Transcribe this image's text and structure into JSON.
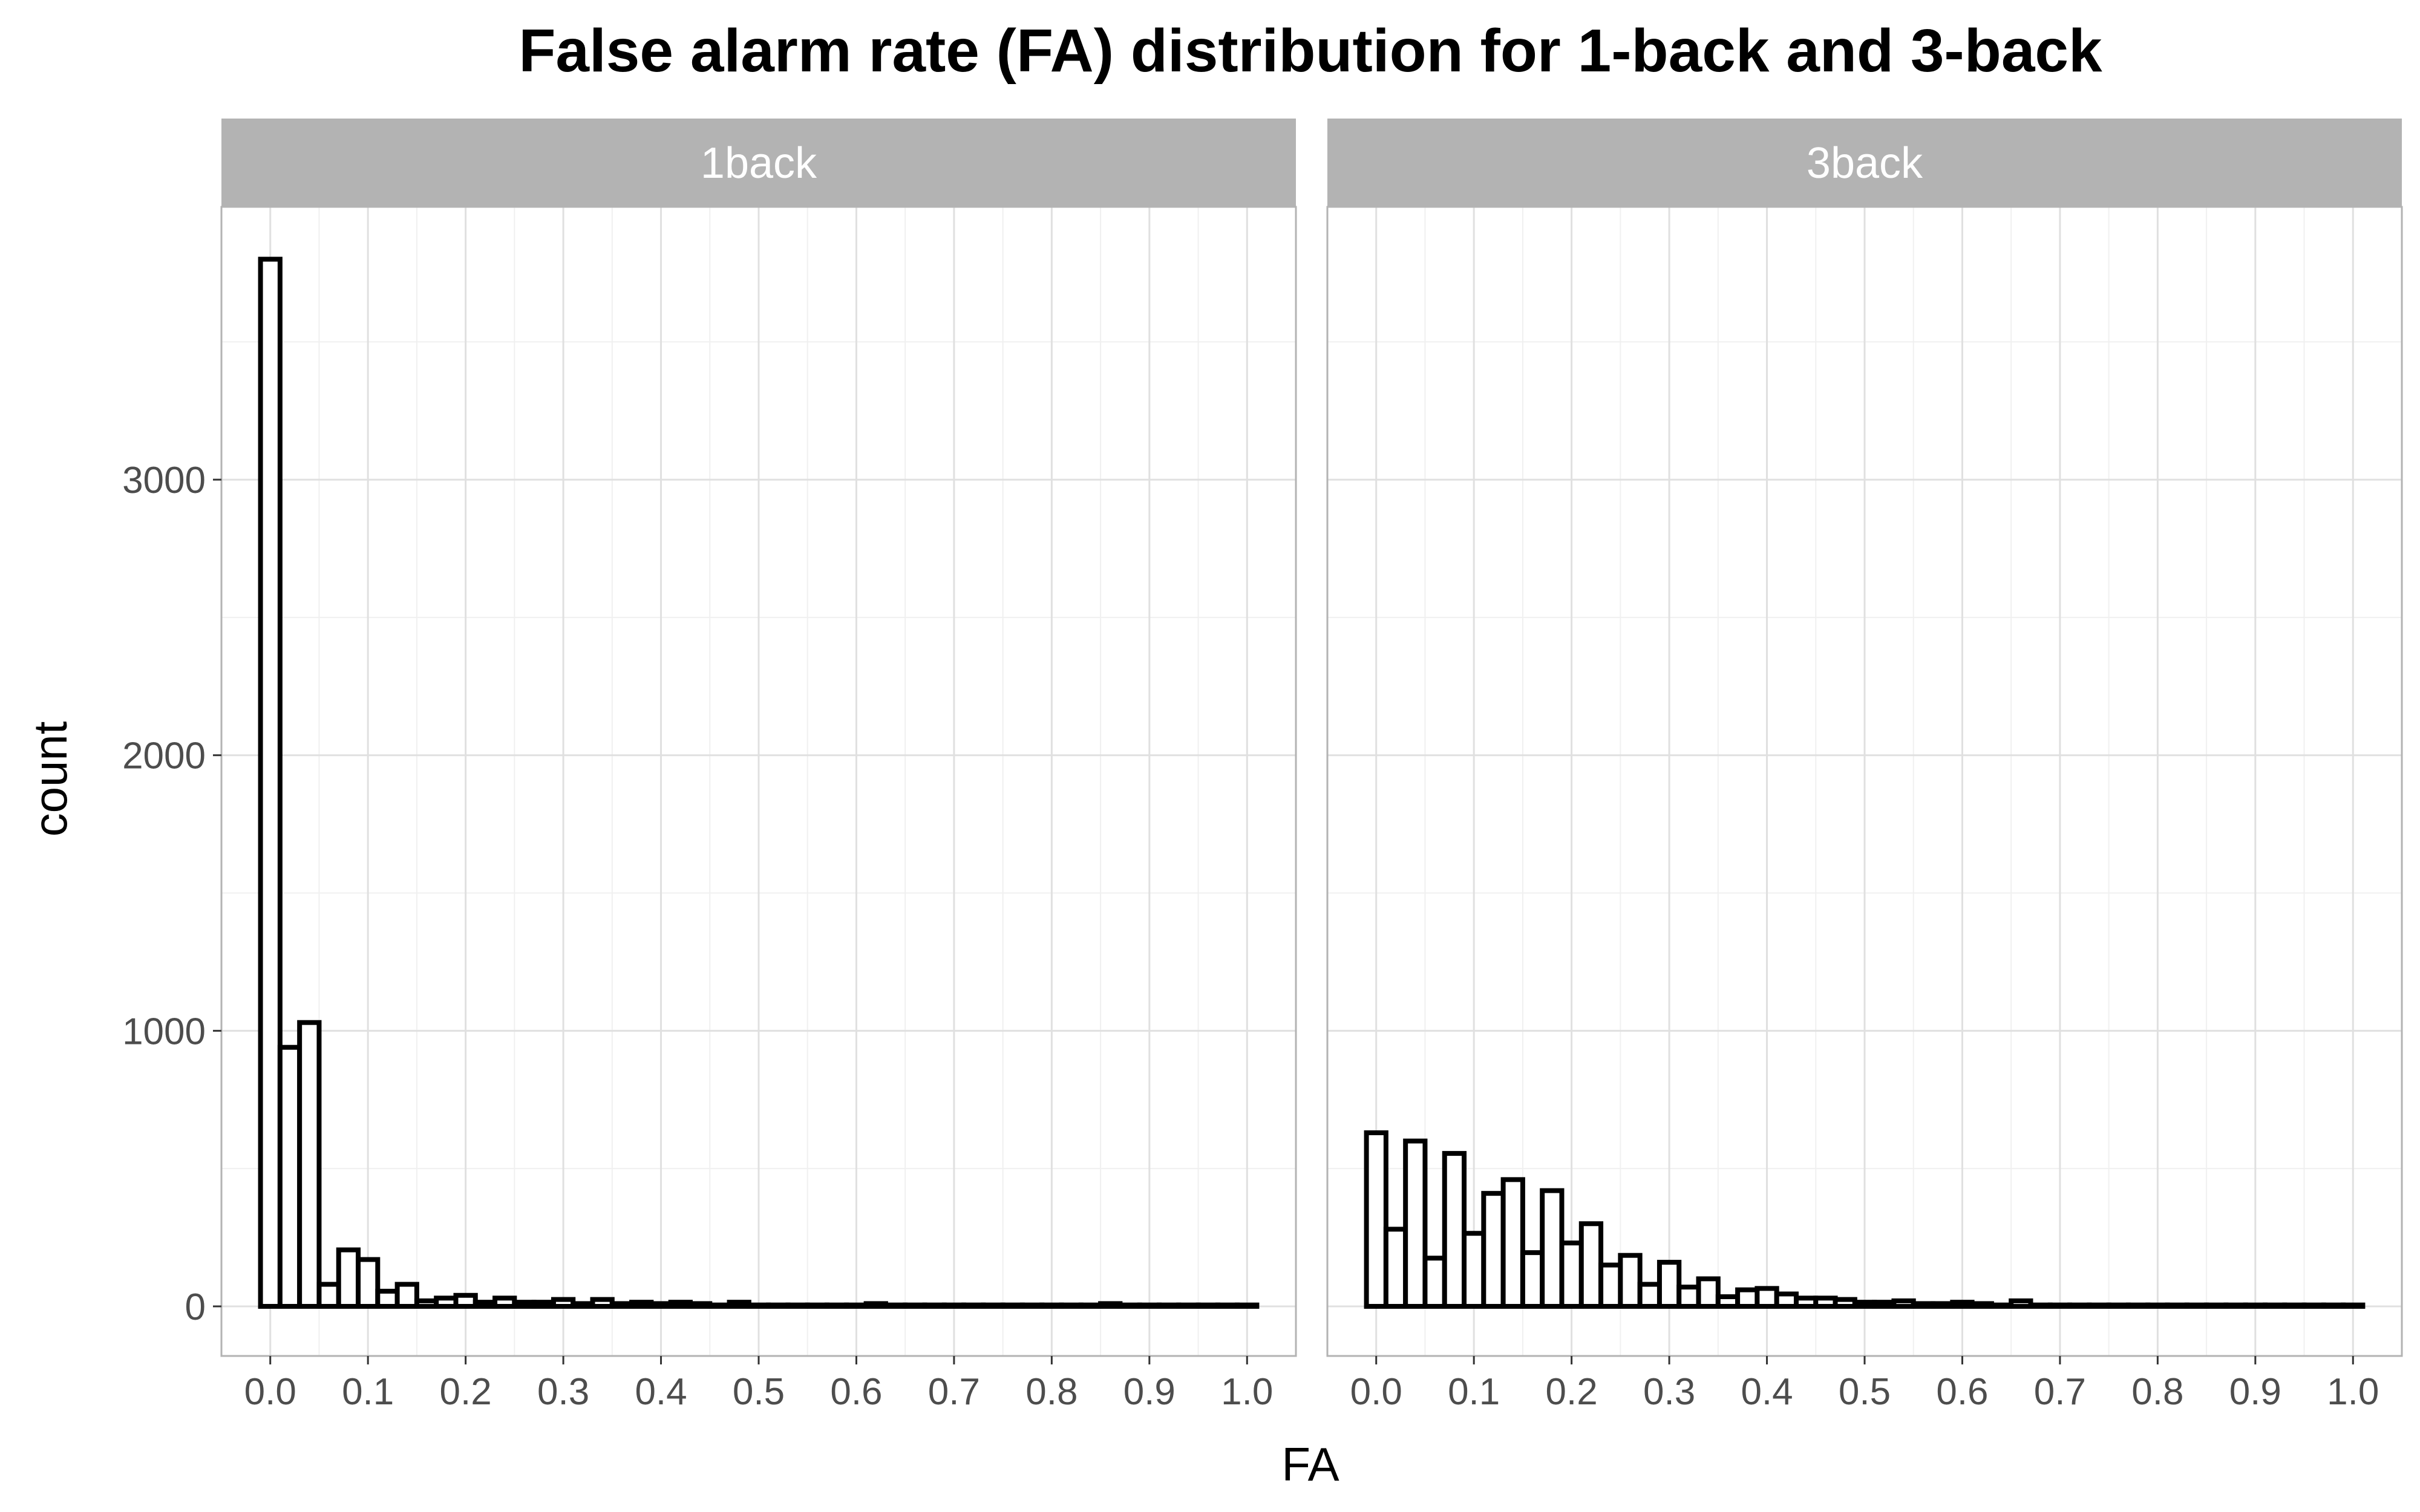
{
  "chart_data": {
    "type": "bar",
    "title": "False alarm rate (FA) distribution for 1-back and 3-back",
    "xlabel": "FA",
    "ylabel": "count",
    "xlim": [
      -0.05,
      1.05
    ],
    "ylim": [
      -180,
      3990
    ],
    "x_ticks": [
      0.0,
      0.1,
      0.2,
      0.3,
      0.4,
      0.5,
      0.6,
      0.7,
      0.8,
      0.9,
      1.0
    ],
    "x_tick_labels": [
      "0.0",
      "0.1",
      "0.2",
      "0.3",
      "0.4",
      "0.5",
      "0.6",
      "0.7",
      "0.8",
      "0.9",
      "1.0"
    ],
    "y_ticks": [
      0,
      1000,
      2000,
      3000
    ],
    "y_tick_labels": [
      "0",
      "1000",
      "2000",
      "3000"
    ],
    "bin_width": 0.02,
    "grid": true,
    "colors": {
      "bar_fill": "#ffffff",
      "bar_stroke": "#000000",
      "strip_fill": "#b3b3b3",
      "strip_text": "#ffffff"
    },
    "panels": [
      {
        "label": "1back",
        "bin_centers": [
          0.0,
          0.02,
          0.04,
          0.06,
          0.08,
          0.1,
          0.12,
          0.14,
          0.16,
          0.18,
          0.2,
          0.22,
          0.24,
          0.26,
          0.28,
          0.3,
          0.32,
          0.34,
          0.36,
          0.38,
          0.4,
          0.42,
          0.44,
          0.46,
          0.48,
          0.5,
          0.52,
          0.54,
          0.56,
          0.58,
          0.6,
          0.62,
          0.64,
          0.66,
          0.68,
          0.7,
          0.72,
          0.74,
          0.76,
          0.78,
          0.8,
          0.82,
          0.84,
          0.86,
          0.88,
          0.9,
          0.92,
          0.94,
          0.96,
          0.98,
          1.0
        ],
        "counts": [
          3800,
          940,
          1030,
          80,
          205,
          170,
          55,
          80,
          20,
          30,
          40,
          15,
          30,
          15,
          15,
          25,
          10,
          25,
          10,
          15,
          10,
          15,
          10,
          5,
          15,
          5,
          5,
          5,
          5,
          5,
          5,
          10,
          5,
          5,
          5,
          5,
          5,
          5,
          5,
          5,
          5,
          5,
          5,
          10,
          5,
          5,
          5,
          5,
          5,
          5,
          5
        ]
      },
      {
        "label": "3back",
        "bin_centers": [
          0.0,
          0.02,
          0.04,
          0.06,
          0.08,
          0.1,
          0.12,
          0.14,
          0.16,
          0.18,
          0.2,
          0.22,
          0.24,
          0.26,
          0.28,
          0.3,
          0.32,
          0.34,
          0.36,
          0.38,
          0.4,
          0.42,
          0.44,
          0.46,
          0.48,
          0.5,
          0.52,
          0.54,
          0.56,
          0.58,
          0.6,
          0.62,
          0.64,
          0.66,
          0.68,
          0.7,
          0.72,
          0.74,
          0.76,
          0.78,
          0.8,
          0.82,
          0.84,
          0.86,
          0.88,
          0.9,
          0.92,
          0.94,
          0.96,
          0.98,
          1.0
        ],
        "counts": [
          630,
          280,
          600,
          175,
          555,
          265,
          410,
          460,
          195,
          420,
          230,
          300,
          150,
          185,
          80,
          160,
          70,
          100,
          35,
          60,
          65,
          45,
          30,
          30,
          25,
          15,
          15,
          20,
          10,
          10,
          15,
          10,
          5,
          20,
          5,
          5,
          5,
          5,
          5,
          5,
          5,
          5,
          5,
          5,
          5,
          5,
          5,
          5,
          5,
          5,
          5
        ]
      }
    ]
  }
}
